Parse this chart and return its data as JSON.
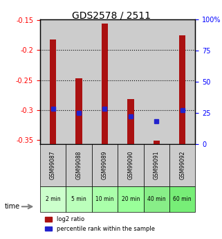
{
  "title": "GDS2578 / 2511",
  "samples": [
    "GSM99087",
    "GSM99088",
    "GSM99089",
    "GSM99090",
    "GSM99091",
    "GSM99092"
  ],
  "time_labels": [
    "2 min",
    "5 min",
    "10 min",
    "20 min",
    "40 min",
    "60 min"
  ],
  "log2_ratios": [
    -0.182,
    -0.247,
    -0.155,
    -0.282,
    -0.352,
    -0.175
  ],
  "log2_baseline": -0.357,
  "percentile_ranks": [
    28,
    25,
    28,
    22,
    18,
    27
  ],
  "ylim": [
    -0.357,
    -0.148
  ],
  "yticks": [
    -0.35,
    -0.3,
    -0.25,
    -0.2,
    -0.15
  ],
  "right_yticks": [
    0,
    25,
    50,
    75,
    100
  ],
  "right_ylabels": [
    "0",
    "25",
    "50",
    "75",
    "100%"
  ],
  "bar_color": "#aa1111",
  "dot_color": "#2222cc",
  "grid_color": "#000000",
  "bg_color_gray": "#cccccc",
  "bg_color_green_light": "#ccffcc",
  "bg_color_green_mid": "#aaffaa",
  "bg_color_green_dark": "#88ee88",
  "legend_red_label": "log2 ratio",
  "legend_blue_label": "percentile rank within the sample"
}
